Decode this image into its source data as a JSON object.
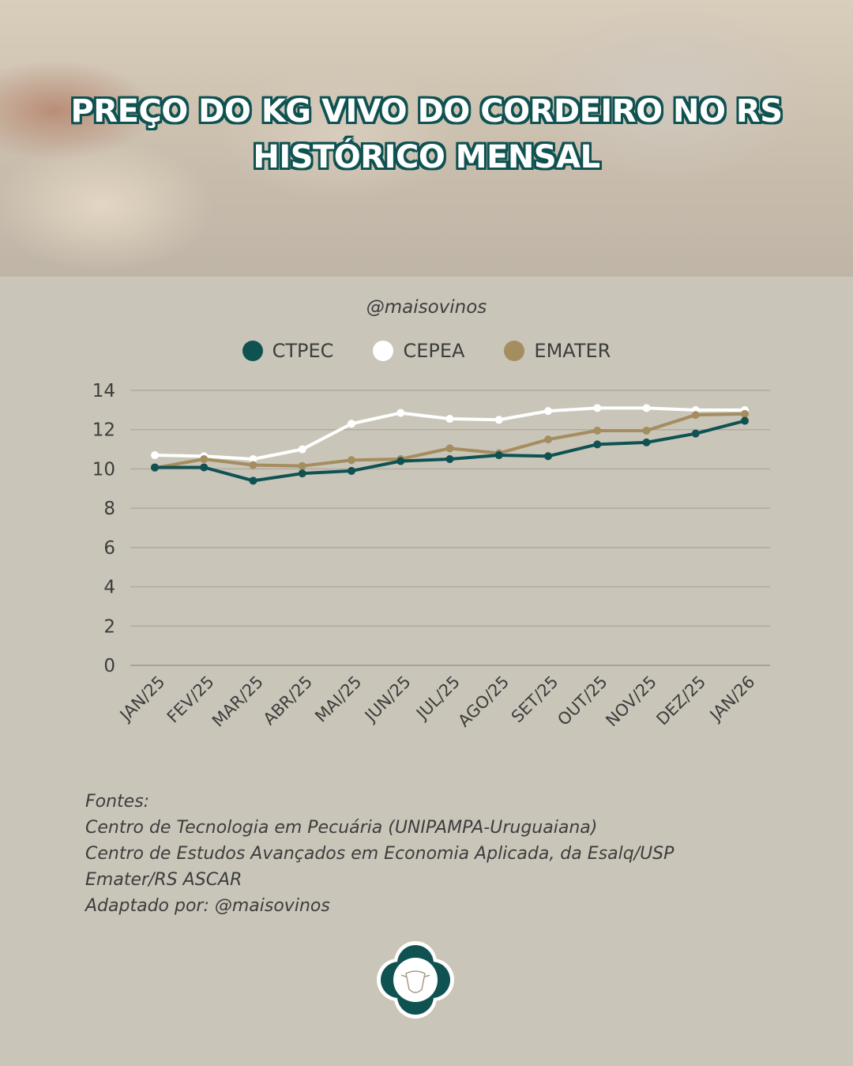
{
  "header": {
    "title_line1": "PREÇO DO KG VIVO DO CORDEIRO NO RS",
    "title_line2": "HISTÓRICO MENSAL"
  },
  "handle": "@maisovinos",
  "chart_data": {
    "type": "line",
    "title": "PREÇO DO KG VIVO DO CORDEIRO NO RS - HISTÓRICO MENSAL",
    "xlabel": "",
    "ylabel": "",
    "ylim": [
      0,
      14
    ],
    "yticks": [
      0,
      2,
      4,
      6,
      8,
      10,
      12,
      14
    ],
    "grid": true,
    "legend_position": "top-center",
    "categories": [
      "JAN/25",
      "FEV/25",
      "MAR/25",
      "ABR/25",
      "MAI/25",
      "JUN/25",
      "JUL/25",
      "AGO/25",
      "SET/25",
      "OUT/25",
      "NOV/25",
      "DEZ/25",
      "JAN/26"
    ],
    "series": [
      {
        "name": "CTPEC",
        "color": "#0f5252",
        "values": [
          10.08,
          10.08,
          9.4,
          9.77,
          9.9,
          10.4,
          10.5,
          10.7,
          10.65,
          11.25,
          11.35,
          11.8,
          12.45
        ]
      },
      {
        "name": "CEPEA",
        "color": "#ffffff",
        "values": [
          10.7,
          10.65,
          10.5,
          11.0,
          12.3,
          12.85,
          12.55,
          12.5,
          12.95,
          13.1,
          13.1,
          13.0,
          13.0
        ]
      },
      {
        "name": "EMATER",
        "color": "#a48d5e",
        "values": [
          10.05,
          10.5,
          10.2,
          10.15,
          10.45,
          10.5,
          11.05,
          10.8,
          11.5,
          11.95,
          11.95,
          12.75,
          12.8
        ]
      }
    ]
  },
  "sources": [
    "Fontes:",
    "Centro de Tecnologia em Pecuária (UNIPAMPA-Uruguaiana)",
    "Centro de Estudos Avançados em Economia Aplicada, da Esalq/USP",
    "Emater/RS ASCAR",
    "Adaptado por: @maisovinos"
  ]
}
